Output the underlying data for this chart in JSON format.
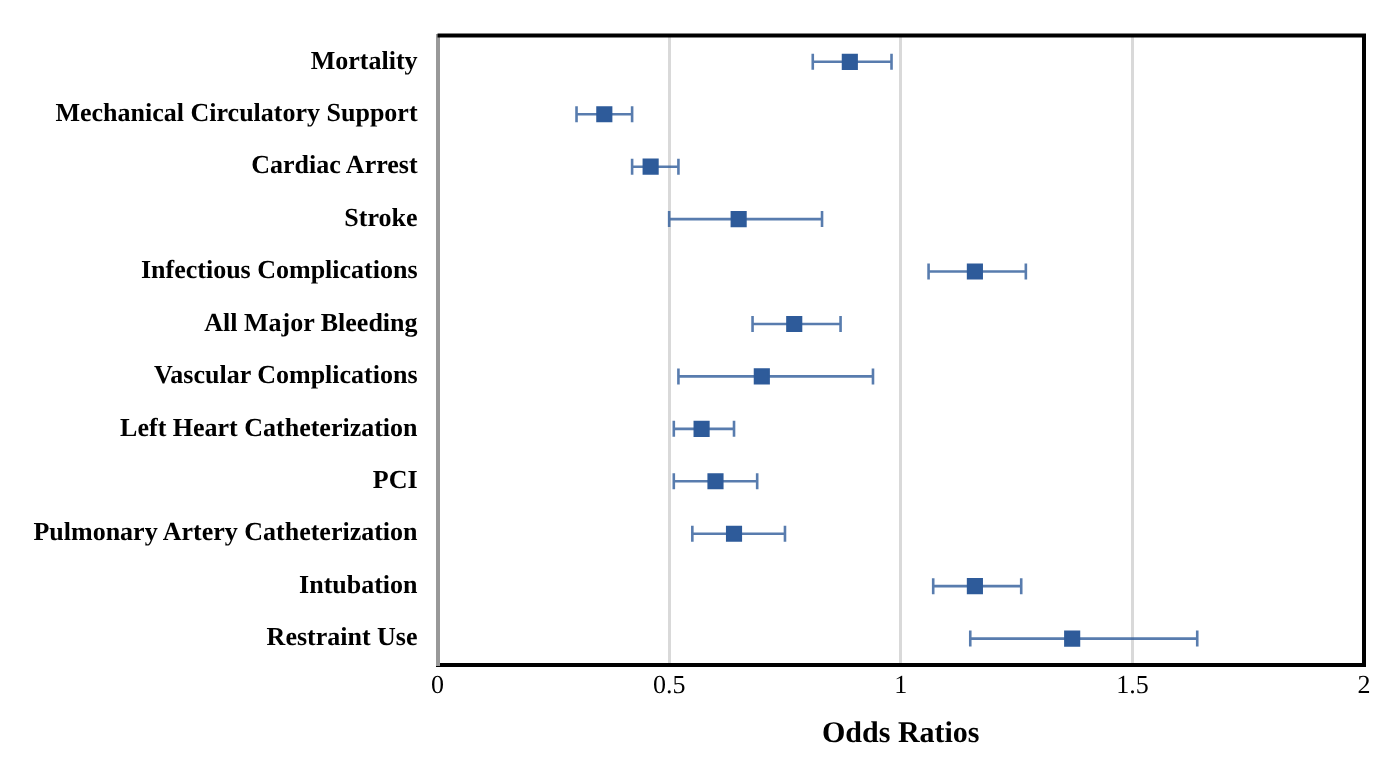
{
  "chart_data": {
    "type": "scatter",
    "orientation": "horizontal",
    "xlabel": "Odds Ratios",
    "categories": [
      "Mortality",
      "Mechanical Circulatory Support",
      "Cardiac Arrest",
      "Stroke",
      "Infectious Complications",
      "All Major Bleeding",
      "Vascular Complications",
      "Left Heart Catheterization",
      "PCI",
      "Pulmonary Artery Catheterization",
      "Intubation",
      "Restraint Use"
    ],
    "values": [
      0.89,
      0.36,
      0.46,
      0.65,
      1.16,
      0.77,
      0.7,
      0.57,
      0.6,
      0.64,
      1.16,
      1.37
    ],
    "errors": [
      [
        0.81,
        0.98
      ],
      [
        0.3,
        0.42
      ],
      [
        0.42,
        0.52
      ],
      [
        0.5,
        0.83
      ],
      [
        1.06,
        1.27
      ],
      [
        0.68,
        0.87
      ],
      [
        0.52,
        0.94
      ],
      [
        0.51,
        0.64
      ],
      [
        0.51,
        0.69
      ],
      [
        0.55,
        0.75
      ],
      [
        1.07,
        1.26
      ],
      [
        1.15,
        1.64
      ]
    ],
    "color": "#2e5b9a",
    "marker": "square",
    "xlim": [
      0,
      2
    ],
    "xticks": [
      0,
      0.5,
      1,
      1.5,
      2
    ],
    "grid": "x"
  }
}
